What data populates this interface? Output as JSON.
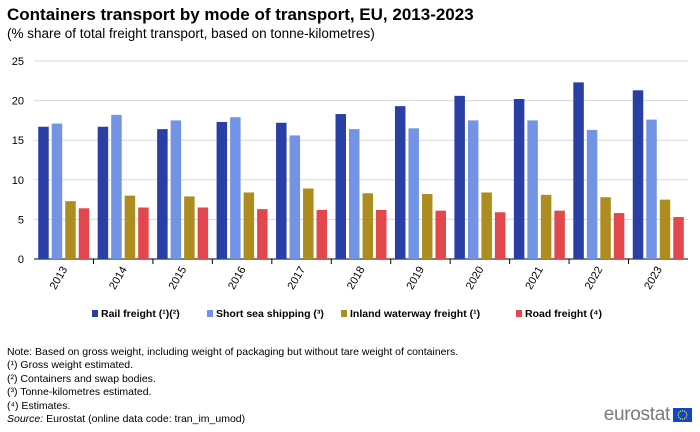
{
  "chart_data": {
    "type": "bar",
    "title": "Containers transport by mode of transport, EU, 2013-2023",
    "subtitle": "(% share of total freight transport, based on tonne-kilometres)",
    "categories": [
      "2013",
      "2014",
      "2015",
      "2016",
      "2017",
      "2018",
      "2019",
      "2020",
      "2021",
      "2022",
      "2023"
    ],
    "ylim": [
      0,
      25
    ],
    "yticks": [
      0,
      5,
      10,
      15,
      20,
      25
    ],
    "grid": true,
    "legend_position": "bottom",
    "series": [
      {
        "name": "Rail freight (¹)(²)",
        "color": "#2A3FA6",
        "values": [
          16.7,
          16.7,
          16.4,
          17.3,
          17.2,
          18.3,
          19.3,
          20.6,
          20.2,
          22.3,
          21.3
        ]
      },
      {
        "name": "Short sea shipping (³)",
        "color": "#7393E4",
        "values": [
          17.1,
          18.2,
          17.5,
          17.9,
          15.6,
          16.4,
          16.5,
          17.5,
          17.5,
          16.3,
          17.6
        ]
      },
      {
        "name": "Inland waterway freight (¹)",
        "color": "#AD8D1F",
        "values": [
          7.3,
          8.0,
          7.9,
          8.4,
          8.9,
          8.3,
          8.2,
          8.4,
          8.1,
          7.8,
          7.5
        ]
      },
      {
        "name": "Road freight (⁴)",
        "color": "#E2474D",
        "values": [
          6.4,
          6.5,
          6.5,
          6.3,
          6.2,
          6.2,
          6.1,
          5.9,
          6.1,
          5.8,
          5.3
        ]
      }
    ]
  },
  "notes": [
    "Note: Based on gross weight, including weight of packaging but without tare weight of containers.",
    "(¹) Gross weight estimated.",
    "(²) Containers and swap bodies.",
    "(³) Tonne-kilometres estimated.",
    "(⁴) Estimates."
  ],
  "source": {
    "label": "Source:",
    "text": "Eurostat (online data code: tran_im_umod)"
  },
  "logo": {
    "text": "eurostat",
    "icon": "eu-flag-icon"
  }
}
